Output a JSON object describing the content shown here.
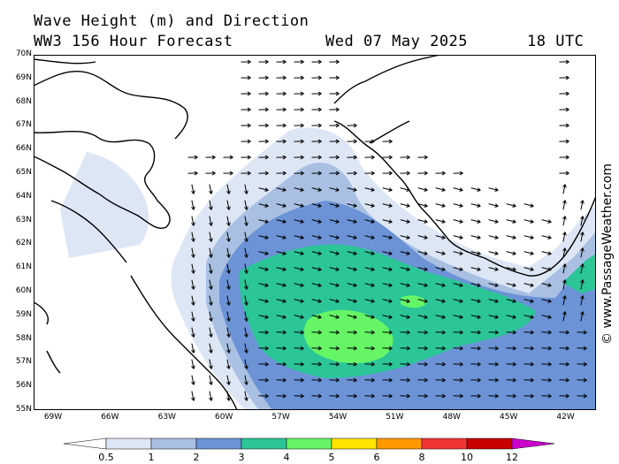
{
  "header": {
    "title_line1": "Wave Height (m) and Direction",
    "title_line2": "WW3 156 Hour Forecast",
    "date": "Wed 07 May 2025",
    "time": "18 UTC"
  },
  "watermark": "© www.PassageWeather.com",
  "axes": {
    "lat_labels": [
      "70N",
      "69N",
      "68N",
      "67N",
      "66N",
      "65N",
      "64N",
      "63N",
      "62N",
      "61N",
      "60N",
      "59N",
      "58N",
      "57N",
      "56N",
      "55N"
    ],
    "lon_labels": [
      "69W",
      "66W",
      "63W",
      "60W",
      "57W",
      "54W",
      "51W",
      "48W",
      "45W",
      "42W"
    ]
  },
  "legend": {
    "ticks": [
      "0.5",
      "1",
      "2",
      "3",
      "4",
      "5",
      "6",
      "8",
      "10",
      "12"
    ],
    "colors": [
      "#dde6f4",
      "#a9c0e3",
      "#6b93d6",
      "#2cc598",
      "#66f566",
      "#ffe400",
      "#ff9800",
      "#f03535",
      "#c80000",
      "#cc00cc"
    ]
  },
  "colors": {
    "land_line": "#000000",
    "arrow": "#000000"
  }
}
